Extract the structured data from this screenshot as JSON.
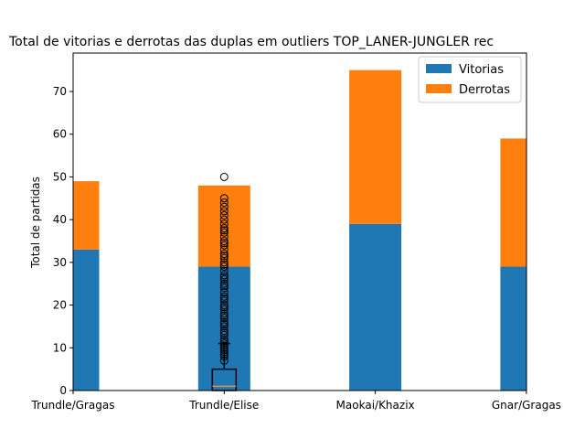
{
  "chart_data": {
    "type": "bar",
    "stacked": true,
    "title": "Total de vitorias e derrotas das duplas em outliers  TOP_LANER-JUNGLER rec",
    "ylabel": "Total de partidas",
    "xlabel": "",
    "categories": [
      "Trundle/Gragas",
      "Trundle/Elise",
      "Maokai/Khazix",
      "Gnar/Gragas"
    ],
    "series": [
      {
        "name": "Vitorias",
        "values": [
          33,
          29,
          39,
          29
        ],
        "color": "#1f77b4"
      },
      {
        "name": "Derrotas",
        "values": [
          16,
          19,
          36,
          30
        ],
        "color": "#ff7f0e"
      }
    ],
    "ylim": [
      0,
      79
    ],
    "yticks": [
      0,
      10,
      20,
      30,
      40,
      50,
      60,
      70
    ],
    "legend_position": "top-right",
    "grid": false,
    "boxplot": {
      "category": "Trundle/Elise",
      "whisker_low": 0,
      "q1": 0,
      "median": 1,
      "q3": 5,
      "whisker_high": 11,
      "outliers": [
        7,
        8,
        8.5,
        9,
        9.5,
        10,
        10.5,
        11,
        11.5,
        12,
        13,
        13.5,
        14,
        15,
        15.5,
        16,
        17,
        17.5,
        18,
        19,
        19.5,
        20,
        21,
        21.5,
        22,
        23,
        24,
        24.5,
        25,
        26,
        26.5,
        27,
        28,
        29,
        29.5,
        30,
        31,
        31.5,
        32,
        33,
        34,
        34.5,
        35,
        36,
        37,
        37.5,
        38,
        39,
        40,
        41,
        42,
        43,
        44,
        45,
        50
      ]
    }
  }
}
